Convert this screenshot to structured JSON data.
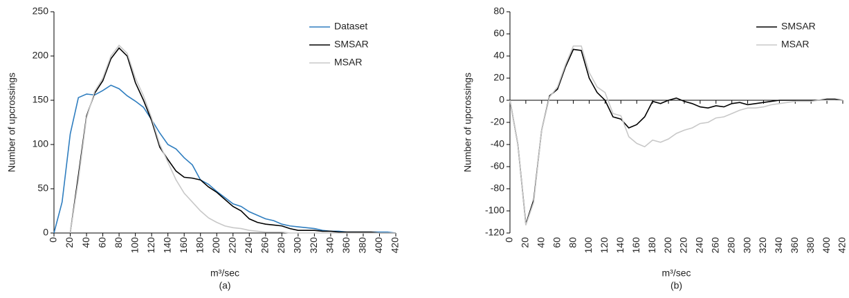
{
  "chart_data": [
    {
      "type": "line",
      "x_label": "m³/sec",
      "y_label": "Number of upcrossings",
      "caption": "(a)",
      "x": [
        0,
        10,
        20,
        30,
        40,
        50,
        60,
        70,
        80,
        90,
        100,
        110,
        120,
        130,
        140,
        150,
        160,
        170,
        180,
        190,
        200,
        210,
        220,
        230,
        240,
        250,
        260,
        270,
        280,
        290,
        300,
        310,
        320,
        330,
        340,
        350,
        360,
        370,
        380,
        390,
        400,
        410,
        420
      ],
      "xlim": [
        0,
        420
      ],
      "xticks": [
        0,
        20,
        40,
        60,
        80,
        100,
        120,
        140,
        160,
        180,
        200,
        220,
        240,
        260,
        280,
        300,
        320,
        340,
        360,
        380,
        400,
        420
      ],
      "ylim": [
        0,
        250
      ],
      "yticks": [
        0,
        50,
        100,
        150,
        200,
        250
      ],
      "grid": false,
      "legend": "upper right",
      "series": [
        {
          "name": "Dataset",
          "color": "#2e7dbf",
          "values": [
            0,
            35,
            112,
            153,
            157,
            156,
            161,
            167,
            163,
            155,
            149,
            142,
            128,
            113,
            100,
            95,
            85,
            77,
            60,
            55,
            47,
            40,
            33,
            30,
            24,
            20,
            16,
            14,
            10,
            8,
            7,
            6,
            5,
            3,
            2,
            2,
            1,
            1,
            1,
            1,
            1,
            1,
            0
          ]
        },
        {
          "name": "SMSAR",
          "color": "#000000",
          "values": [
            null,
            null,
            0,
            65,
            132,
            158,
            172,
            197,
            209,
            200,
            170,
            150,
            127,
            97,
            83,
            70,
            63,
            62,
            60,
            52,
            46,
            38,
            30,
            25,
            16,
            12,
            10,
            9,
            8,
            5,
            3,
            3,
            3,
            2,
            2,
            1,
            1,
            1,
            1,
            1,
            0,
            0,
            0
          ]
        },
        {
          "name": "MSAR",
          "color": "#c8c8c8",
          "values": [
            null,
            null,
            0,
            60,
            130,
            160,
            175,
            200,
            212,
            203,
            175,
            155,
            130,
            100,
            80,
            60,
            45,
            35,
            25,
            17,
            12,
            8,
            6,
            5,
            3,
            2,
            1,
            1,
            1,
            0,
            0,
            0,
            0,
            0,
            0,
            0,
            0,
            0,
            0,
            0,
            0,
            0,
            0
          ]
        }
      ]
    },
    {
      "type": "line",
      "x_label": "m³/sec",
      "y_label": "Number of upcrossings",
      "caption": "(b)",
      "x": [
        0,
        10,
        20,
        30,
        40,
        50,
        60,
        70,
        80,
        90,
        100,
        110,
        120,
        130,
        140,
        150,
        160,
        170,
        180,
        190,
        200,
        210,
        220,
        230,
        240,
        250,
        260,
        270,
        280,
        290,
        300,
        310,
        320,
        330,
        340,
        350,
        360,
        370,
        380,
        390,
        400,
        410,
        420
      ],
      "xlim": [
        0,
        420
      ],
      "xticks": [
        0,
        20,
        40,
        60,
        80,
        100,
        120,
        140,
        160,
        180,
        200,
        220,
        240,
        260,
        280,
        300,
        320,
        340,
        360,
        380,
        400,
        420
      ],
      "ylim": [
        -120,
        80
      ],
      "yticks": [
        -120,
        -100,
        -80,
        -60,
        -40,
        -20,
        0,
        20,
        40,
        60,
        80
      ],
      "grid": false,
      "legend": "upper right",
      "series": [
        {
          "name": "SMSAR",
          "color": "#000000",
          "values": [
            0,
            -40,
            -112,
            -90,
            -27,
            4,
            10,
            30,
            46,
            45,
            20,
            7,
            0,
            -15,
            -17,
            -25,
            -22,
            -15,
            -1,
            -3,
            0,
            2,
            -1,
            -3,
            -6,
            -7,
            -5,
            -6,
            -3,
            -2,
            -4,
            -3,
            -2,
            -1,
            0,
            0,
            0,
            0,
            0,
            0,
            1,
            1,
            0
          ]
        },
        {
          "name": "MSAR",
          "color": "#c8c8c8",
          "values": [
            0,
            -40,
            -113,
            -92,
            -27,
            3,
            12,
            32,
            49,
            49,
            25,
            12,
            7,
            -12,
            -14,
            -33,
            -39,
            -42,
            -36,
            -38,
            -35,
            -30,
            -27,
            -25,
            -21,
            -20,
            -16,
            -15,
            -12,
            -9,
            -7,
            -7,
            -6,
            -4,
            -3,
            -2,
            -1,
            -1,
            -1,
            0,
            0,
            0,
            0
          ]
        }
      ]
    }
  ]
}
